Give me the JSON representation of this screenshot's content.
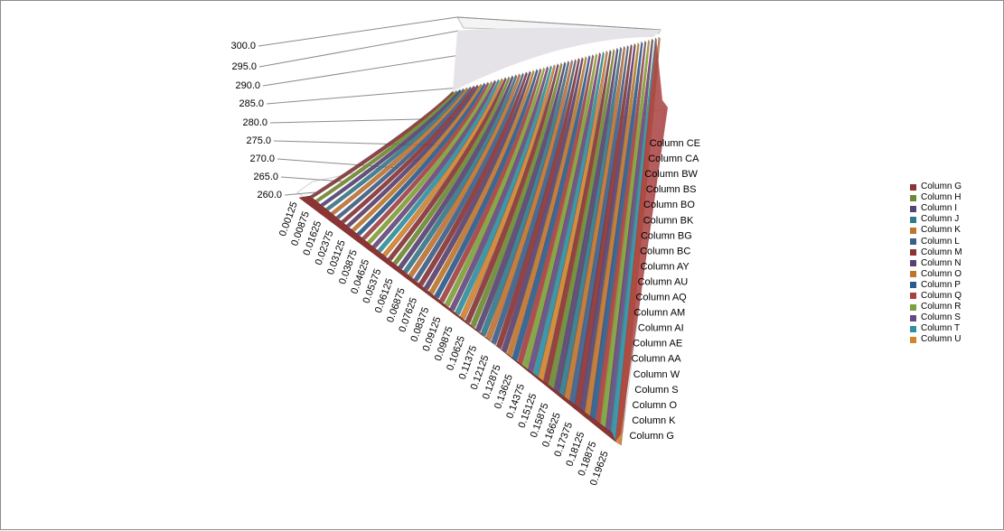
{
  "chart_data": {
    "type": "area",
    "variant": "3d-surface-ribbons",
    "z_axis": {
      "tick_labels": [
        "260.0",
        "265.0",
        "270.0",
        "275.0",
        "280.0",
        "285.0",
        "290.0",
        "295.0",
        "300.0"
      ],
      "range": [
        260,
        300
      ]
    },
    "x_axis": {
      "tick_labels": [
        "0.00125",
        "0.00875",
        "0.01625",
        "0.02375",
        "0.03125",
        "0.03875",
        "0.04625",
        "0.05375",
        "0.06125",
        "0.06875",
        "0.07625",
        "0.08375",
        "0.09125",
        "0.09875",
        "0.10625",
        "0.11375",
        "0.12125",
        "0.12875",
        "0.13625",
        "0.14375",
        "0.15125",
        "0.15875",
        "0.16625",
        "0.17375",
        "0.18125",
        "0.18875",
        "0.19625"
      ]
    },
    "depth_axis": {
      "tick_labels": [
        "Column CE",
        "Column CA",
        "Column BW",
        "Column BS",
        "Column BO",
        "Column BK",
        "Column BG",
        "Column BC",
        "Column AY",
        "Column AU",
        "Column AQ",
        "Column AM",
        "Column AI",
        "Column AE",
        "Column AA",
        "Column W",
        "Column S",
        "Column O",
        "Column K",
        "Column G"
      ]
    },
    "legend": {
      "position": "right",
      "entries": [
        {
          "name": "Column G",
          "color": "#8b3433"
        },
        {
          "name": "Column H",
          "color": "#6b8a36"
        },
        {
          "name": "Column I",
          "color": "#574371"
        },
        {
          "name": "Column J",
          "color": "#2f7b8c"
        },
        {
          "name": "Column K",
          "color": "#c0742e"
        },
        {
          "name": "Column L",
          "color": "#3b5f8c"
        },
        {
          "name": "Column M",
          "color": "#8b3433"
        },
        {
          "name": "Column N",
          "color": "#574371"
        },
        {
          "name": "Column O",
          "color": "#c0742e"
        },
        {
          "name": "Column P",
          "color": "#2c5c8a"
        },
        {
          "name": "Column Q",
          "color": "#a8413f"
        },
        {
          "name": "Column R",
          "color": "#7aa13d"
        },
        {
          "name": "Column S",
          "color": "#614b85"
        },
        {
          "name": "Column T",
          "color": "#2f8fa3"
        },
        {
          "name": "Column U",
          "color": "#d4832c"
        }
      ]
    },
    "gridlines": true
  }
}
